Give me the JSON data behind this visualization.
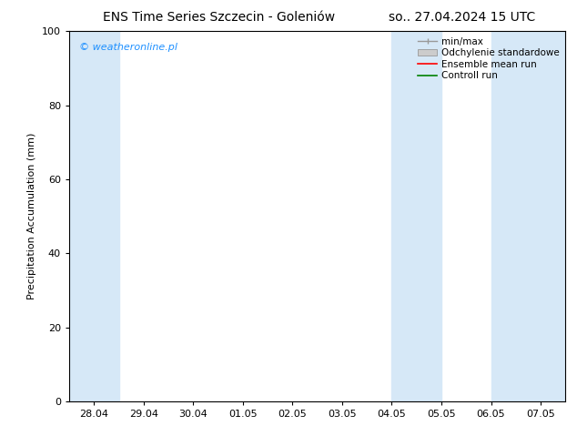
{
  "title_left": "ENS Time Series Szczecin - Goleniów",
  "title_right": "so.. 27.04.2024 15 UTC",
  "ylabel": "Precipitation Accumulation (mm)",
  "ylim": [
    0,
    100
  ],
  "yticks": [
    0,
    20,
    40,
    60,
    80,
    100
  ],
  "x_tick_labels": [
    "28.04",
    "29.04",
    "30.04",
    "01.05",
    "02.05",
    "03.05",
    "04.05",
    "05.05",
    "06.05",
    "07.05"
  ],
  "shaded_bands": [
    {
      "xmin": -0.5,
      "xmax": 0.5,
      "color": "#d6e8f7"
    },
    {
      "xmin": 6.0,
      "xmax": 7.0,
      "color": "#d6e8f7"
    },
    {
      "xmin": 8.0,
      "xmax": 9.5,
      "color": "#d6e8f7"
    }
  ],
  "watermark_text": "© weatheronline.pl",
  "watermark_color": "#1e90ff",
  "background_color": "#ffffff",
  "plot_bg_color": "#ffffff",
  "legend_items": [
    {
      "label": "min/max",
      "color": "#aaaaaa",
      "style": "errorbar"
    },
    {
      "label": "Odchylenie standardowe",
      "color": "#cccccc",
      "style": "box"
    },
    {
      "label": "Ensemble mean run",
      "color": "#ff0000",
      "style": "line"
    },
    {
      "label": "Controll run",
      "color": "#008000",
      "style": "line"
    }
  ],
  "font_size_title": 10,
  "font_size_legend": 7.5,
  "font_size_labels": 8,
  "font_size_watermark": 8
}
